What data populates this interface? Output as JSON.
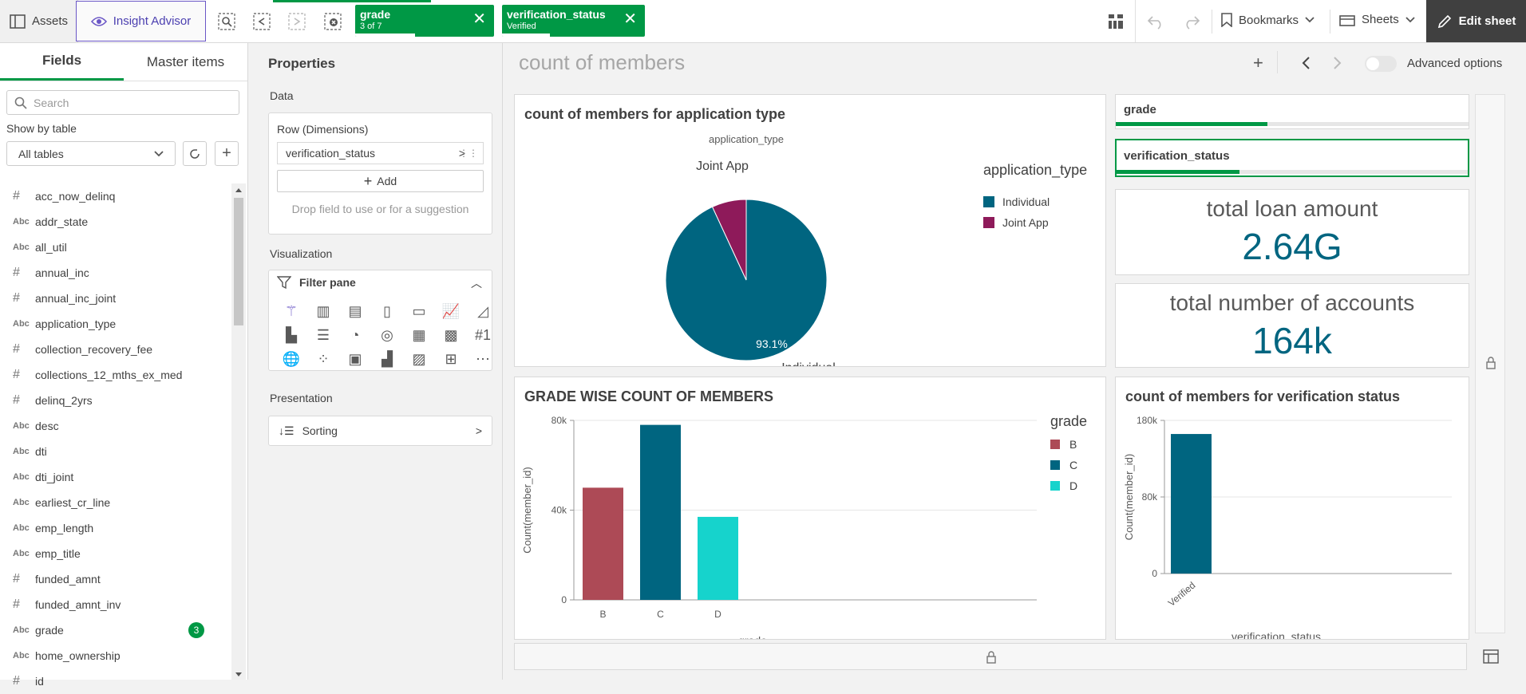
{
  "topbar": {
    "assets": "Assets",
    "insight": "Insight Advisor",
    "chips": [
      {
        "title": "grade",
        "sub": "3 of 7",
        "fill": 0.43
      },
      {
        "title": "verification_status",
        "sub": "Verified",
        "fill": 0.35
      }
    ],
    "bookmarks": "Bookmarks",
    "sheets": "Sheets",
    "edit": "Edit sheet"
  },
  "sidebar": {
    "tabs": [
      "Fields",
      "Master items"
    ],
    "search_placeholder": "Search",
    "show_by": "Show by table",
    "all_tables": "All tables",
    "fields": [
      {
        "type": "#",
        "name": "acc_now_delinq"
      },
      {
        "type": "Abc",
        "name": "addr_state"
      },
      {
        "type": "Abc",
        "name": "all_util"
      },
      {
        "type": "#",
        "name": "annual_inc"
      },
      {
        "type": "#",
        "name": "annual_inc_joint"
      },
      {
        "type": "Abc",
        "name": "application_type"
      },
      {
        "type": "#",
        "name": "collection_recovery_fee"
      },
      {
        "type": "#",
        "name": "collections_12_mths_ex_med"
      },
      {
        "type": "#",
        "name": "delinq_2yrs"
      },
      {
        "type": "Abc",
        "name": "desc"
      },
      {
        "type": "Abc",
        "name": "dti"
      },
      {
        "type": "Abc",
        "name": "dti_joint"
      },
      {
        "type": "Abc",
        "name": "earliest_cr_line"
      },
      {
        "type": "Abc",
        "name": "emp_length"
      },
      {
        "type": "Abc",
        "name": "emp_title"
      },
      {
        "type": "#",
        "name": "funded_amnt"
      },
      {
        "type": "#",
        "name": "funded_amnt_inv"
      },
      {
        "type": "Abc",
        "name": "grade",
        "badge": "3"
      },
      {
        "type": "Abc",
        "name": "home_ownership"
      },
      {
        "type": "#",
        "name": "id"
      }
    ]
  },
  "properties": {
    "title": "Properties",
    "data_label": "Data",
    "row_dims": "Row (Dimensions)",
    "dim": "verification_status",
    "add": "Add",
    "drop_hint": "Drop field to use or for a suggestion",
    "viz_label": "Visualization",
    "viz_selected": "Filter pane",
    "presentation_label": "Presentation",
    "sorting": "Sorting"
  },
  "main": {
    "sheet_title": "count of members",
    "advanced": "Advanced options",
    "filter_boxes": [
      {
        "label": "grade",
        "fill": 0.43
      },
      {
        "label": "verification_status",
        "fill": 0.35
      }
    ],
    "kpis": [
      {
        "label": "total loan amount",
        "value": "2.64G"
      },
      {
        "label": "total number of accounts",
        "value": "164k"
      }
    ]
  },
  "chart_data": [
    {
      "type": "pie",
      "title": "count of members for application type",
      "dimension_label": "application_type",
      "categories": [
        "Individual",
        "Joint App"
      ],
      "values": [
        93.1,
        6.9
      ],
      "data_labels": [
        "93.1%"
      ],
      "colors": [
        "#006580",
        "#8e1a5a"
      ],
      "legend_title": "application_type",
      "legend": "right"
    },
    {
      "type": "bar",
      "title": "GRADE WISE COUNT OF MEMBERS",
      "categories": [
        "B",
        "C",
        "D"
      ],
      "values": [
        50000,
        78000,
        37000
      ],
      "colors": [
        "#ad4a56",
        "#006580",
        "#16d3cc"
      ],
      "ylabel": "Count(member_id)",
      "xlabel": "grade",
      "yticks": [
        "0",
        "40k",
        "80k"
      ],
      "ylim": [
        0,
        80000
      ],
      "legend_title": "grade",
      "legend": "right"
    },
    {
      "type": "bar",
      "title": "count of members for verification status",
      "categories": [
        "Verified"
      ],
      "values": [
        164000
      ],
      "colors": [
        "#006580"
      ],
      "ylabel": "Count(member_id)",
      "xlabel": "verification_status",
      "yticks": [
        "0",
        "80k",
        "180k"
      ],
      "ylim": [
        0,
        180000
      ]
    }
  ]
}
